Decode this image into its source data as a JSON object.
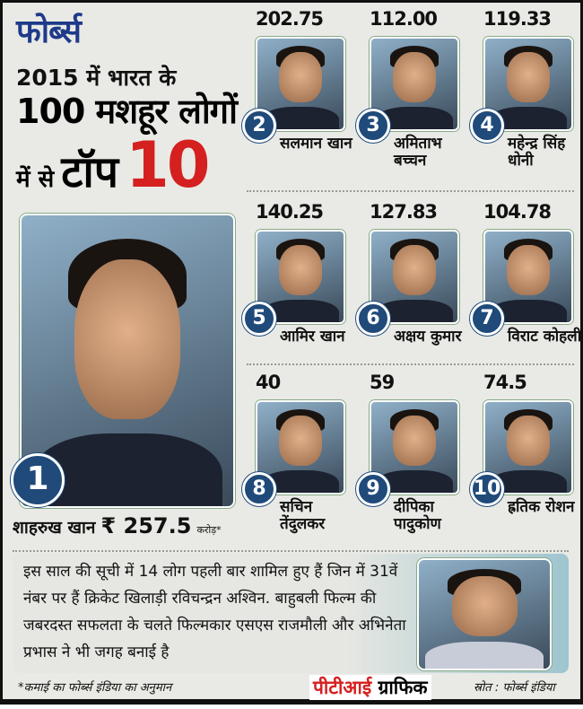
{
  "header": {
    "brand": "फोर्ब्स",
    "line1": "2015 में भारत के",
    "line2": "100 मशहूर लोगों",
    "line3a": "में से",
    "line3b": "टॉप",
    "line3c": "10"
  },
  "rank1": {
    "rank": "1",
    "name": "शाहरुख खान",
    "earning": "₹ 257.5",
    "unit": "करोड़*"
  },
  "people": [
    {
      "rank": "2",
      "value": "202.75",
      "name": "सलमान खान"
    },
    {
      "rank": "3",
      "value": "112.00",
      "name": "अमिताभ बच्चन"
    },
    {
      "rank": "4",
      "value": "119.33",
      "name": "महेन्द्र सिंह धोनी"
    },
    {
      "rank": "5",
      "value": "140.25",
      "name": "आमिर खान"
    },
    {
      "rank": "6",
      "value": "127.83",
      "name": "अक्षय कुमार"
    },
    {
      "rank": "7",
      "value": "104.78",
      "name": "विराट कोहली"
    },
    {
      "rank": "8",
      "value": "40",
      "name": "सचिन तेंदुलकर"
    },
    {
      "rank": "9",
      "value": "59",
      "name": "दीपिका पादुकोण"
    },
    {
      "rank": "10",
      "value": "74.5",
      "name": "ह्रतिक रोशन"
    }
  ],
  "note": "इस साल की सूची में 14 लोग पहली बार शामिल हुए हैं जिन में 31वें नंबर पर हैं क्रिकेट खिलाड़ी रविचन्द्रन अश्विन. बाहुबली फिल्म की जबरदस्त सफलता के चलते फिल्मकार एसएस राजमौली और अभिनेता प्रभास ने भी जगह बनाई है",
  "footer": {
    "footnote": "*कमाई का फोर्ब्स इंडिया का अनुमान",
    "pti_red": "पीटीआई",
    "pti_black": "ग्राफिक",
    "source": "स्रोत : फोर्ब्स इंडिया"
  },
  "colors": {
    "brand": "#1f3a8a",
    "accent": "#d52020",
    "badge": "#1f4a7a",
    "background": "#e9eae5"
  }
}
